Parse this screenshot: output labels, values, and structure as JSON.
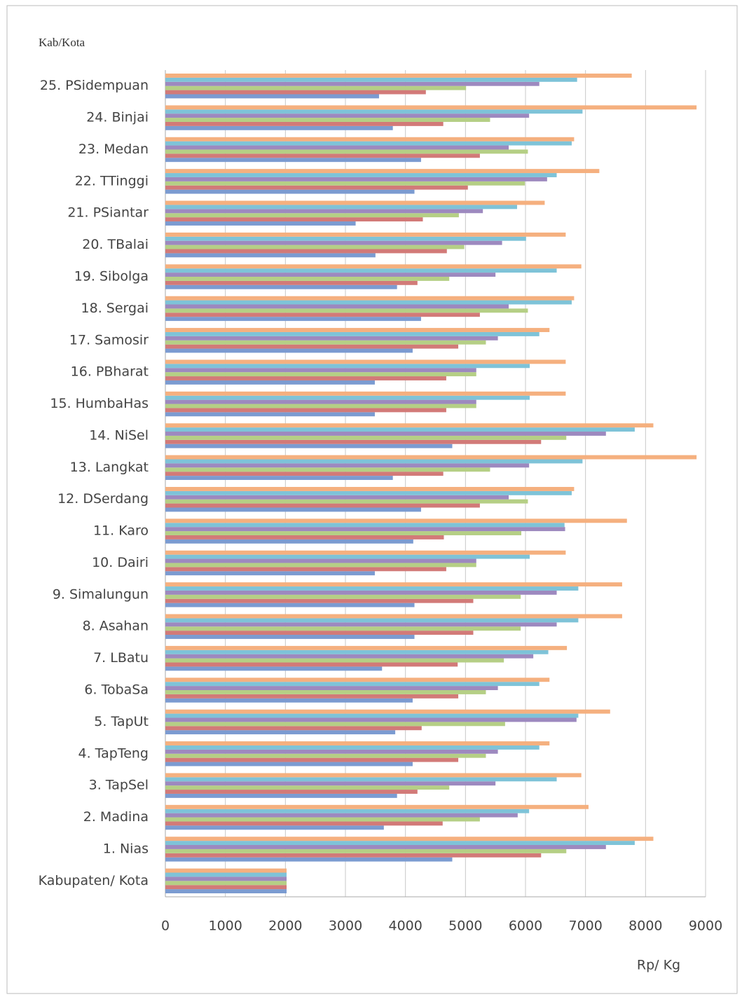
{
  "chart_data": {
    "type": "barh",
    "y_label": "Kab/Kota",
    "x_label": "Rp/ Kg",
    "categories": [
      "Kabupaten/ Kota",
      "1. Nias",
      "2. Madina",
      "3. TapSel",
      "4. TapTeng",
      "5. TapUt",
      "6. TobaSa",
      "7. LBatu",
      "8. Asahan",
      "9. Simalungun",
      "10. Dairi",
      "11. Karo",
      "12. DSerdang",
      "13. Langkat",
      "14. NiSel",
      "15. HumbaHas",
      "16. PBharat",
      "17. Samosir",
      "18. Sergai",
      "19. Sibolga",
      "20. TBalai",
      "21. PSiantar",
      "22. TTinggi",
      "23. Medan",
      "24. Binjai",
      "25. PSidempuan"
    ],
    "series": [
      {
        "color": "#7b9bd1",
        "values": [
          2020,
          4780,
          3640,
          3860,
          4120,
          3830,
          4120,
          3610,
          4150,
          4150,
          3490,
          4130,
          4260,
          3790,
          4780,
          3490,
          3490,
          4120,
          4260,
          3860,
          3500,
          3170,
          4150,
          4260,
          3790,
          3560
        ]
      },
      {
        "color": "#d27a78",
        "values": [
          2020,
          6260,
          4620,
          4200,
          4880,
          4270,
          4880,
          4870,
          5130,
          5130,
          4680,
          4640,
          5240,
          4630,
          6260,
          4680,
          4680,
          4880,
          5240,
          4200,
          4690,
          4290,
          5040,
          5240,
          4630,
          4340
        ]
      },
      {
        "color": "#b5cf85",
        "values": [
          2020,
          6680,
          5240,
          4730,
          5340,
          5660,
          5340,
          5640,
          5920,
          5920,
          5180,
          5930,
          6040,
          5410,
          6680,
          5180,
          5180,
          5340,
          6040,
          4730,
          4980,
          4890,
          5990,
          6040,
          5410,
          5010
        ]
      },
      {
        "color": "#9d89bf",
        "values": [
          2020,
          7340,
          5870,
          5500,
          5540,
          6850,
          5540,
          6130,
          6520,
          6520,
          5180,
          6660,
          5720,
          6060,
          7340,
          5180,
          5180,
          5540,
          5720,
          5500,
          5610,
          5290,
          6360,
          5720,
          6060,
          6230
        ]
      },
      {
        "color": "#7ec3d8",
        "values": [
          2020,
          7820,
          6060,
          6520,
          6230,
          6880,
          6230,
          6380,
          6880,
          6880,
          6070,
          6650,
          6770,
          6950,
          7820,
          6070,
          6070,
          6230,
          6770,
          6520,
          6010,
          5860,
          6520,
          6770,
          6950,
          6860
        ]
      },
      {
        "color": "#f5b07f",
        "values": [
          2020,
          8130,
          7050,
          6930,
          6400,
          7410,
          6400,
          6690,
          7610,
          7610,
          6670,
          7690,
          6810,
          8850,
          8130,
          6670,
          6670,
          6400,
          6810,
          6930,
          6670,
          6320,
          7230,
          6810,
          8850,
          7770
        ]
      }
    ],
    "xlim": [
      0,
      9000
    ],
    "xticks": [
      0,
      1000,
      2000,
      3000,
      4000,
      5000,
      6000,
      7000,
      8000,
      9000
    ],
    "grid": true
  }
}
